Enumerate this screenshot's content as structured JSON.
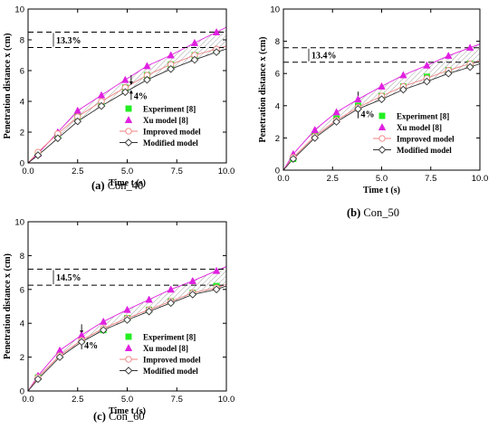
{
  "figure": {
    "captions": [
      {
        "tag": "(a)",
        "text": "Con_40"
      },
      {
        "tag": "(b)",
        "text": "Con_50"
      },
      {
        "tag": "(c)",
        "text": "Con_60"
      }
    ]
  },
  "chart_data": [
    {
      "type": "line",
      "caption": "(a) Con_40",
      "xlabel": "Time t (s)",
      "ylabel": "Penetration distance x (cm)",
      "xlim": [
        0,
        10
      ],
      "ylim": [
        0,
        10
      ],
      "xticks": [
        "0.0",
        "2.5",
        "5.0",
        "7.5",
        "10.0"
      ],
      "yticks": [
        "0",
        "2",
        "4",
        "6",
        "8",
        "10"
      ],
      "grid": false,
      "legend_position": "bottom-right",
      "annotations": [
        {
          "text": "13.3%",
          "type": "dashed-band",
          "y_low": 7.5,
          "y_high": 8.5
        },
        {
          "text": "4%",
          "type": "arrow",
          "x": 5.2,
          "y_low": 4.8,
          "y_high": 5.0
        }
      ],
      "series": [
        {
          "name": "Experiment [8]",
          "marker": "square",
          "color": "#22ee22",
          "x": [
            0.5,
            1.5,
            2.5,
            3.7,
            4.9,
            6.0,
            7.2,
            8.4,
            9.5
          ],
          "y": [
            0.6,
            1.8,
            3.0,
            3.9,
            4.9,
            5.7,
            6.4,
            7.0,
            7.3
          ]
        },
        {
          "name": "Xu model [8]",
          "marker": "triangle",
          "color": "#e020e0",
          "x": [
            0.5,
            1.5,
            2.5,
            3.7,
            4.9,
            6.0,
            7.2,
            8.4,
            9.5
          ],
          "y": [
            0.6,
            2.0,
            3.4,
            4.4,
            5.4,
            6.3,
            7.0,
            7.8,
            8.5
          ]
        },
        {
          "name": "Improved model",
          "marker": "circle-open",
          "color": "#f08080",
          "x": [
            0,
            0.5,
            1.5,
            2.5,
            3.7,
            4.9,
            6.0,
            7.2,
            8.4,
            9.5,
            10
          ],
          "y": [
            0,
            0.7,
            1.9,
            3.0,
            4.0,
            4.9,
            5.7,
            6.4,
            7.0,
            7.4,
            7.6
          ]
        },
        {
          "name": "Modified model",
          "marker": "diamond-open",
          "color": "#333333",
          "x": [
            0,
            0.5,
            1.5,
            2.5,
            3.7,
            4.9,
            6.0,
            7.2,
            8.4,
            9.5,
            10
          ],
          "y": [
            0,
            0.5,
            1.6,
            2.7,
            3.7,
            4.6,
            5.4,
            6.1,
            6.7,
            7.2,
            7.4
          ]
        }
      ]
    },
    {
      "type": "line",
      "caption": "(b) Con_50",
      "xlabel": "Time t (s)",
      "ylabel": "Penetration distance x (cm)",
      "xlim": [
        0,
        10
      ],
      "ylim": [
        0,
        10
      ],
      "xticks": [
        "0.0",
        "2.5",
        "5.0",
        "7.5",
        "10.0"
      ],
      "yticks": [
        "0",
        "2",
        "4",
        "6",
        "8",
        "10"
      ],
      "grid": false,
      "legend_position": "bottom-right",
      "annotations": [
        {
          "text": "13.4%",
          "type": "dashed-band",
          "y_low": 6.7,
          "y_high": 7.6
        },
        {
          "text": "4%",
          "type": "arrow",
          "x": 3.8,
          "y_low": 3.9,
          "y_high": 4.2
        }
      ],
      "series": [
        {
          "name": "Experiment [8]",
          "marker": "square",
          "color": "#22ee22",
          "x": [
            0.5,
            1.6,
            2.7,
            3.8,
            5.0,
            6.1,
            7.3,
            8.4,
            9.5
          ],
          "y": [
            0.7,
            2.2,
            3.2,
            4.0,
            4.6,
            5.2,
            5.8,
            6.2,
            6.6
          ]
        },
        {
          "name": "Xu model [8]",
          "marker": "triangle",
          "color": "#e020e0",
          "x": [
            0.5,
            1.6,
            2.7,
            3.8,
            5.0,
            6.1,
            7.3,
            8.4,
            9.5
          ],
          "y": [
            1.0,
            2.5,
            3.6,
            4.4,
            5.2,
            5.9,
            6.5,
            7.1,
            7.6
          ]
        },
        {
          "name": "Improved model",
          "marker": "circle-open",
          "color": "#f08080",
          "x": [
            0,
            0.5,
            1.6,
            2.7,
            3.8,
            5.0,
            6.1,
            7.3,
            8.4,
            9.5,
            10
          ],
          "y": [
            0,
            0.8,
            2.1,
            3.1,
            3.9,
            4.6,
            5.2,
            5.7,
            6.2,
            6.6,
            6.8
          ]
        },
        {
          "name": "Modified model",
          "marker": "diamond-open",
          "color": "#333333",
          "x": [
            0,
            0.5,
            1.6,
            2.7,
            3.8,
            5.0,
            6.1,
            7.3,
            8.4,
            9.5,
            10
          ],
          "y": [
            0,
            0.7,
            2.0,
            3.0,
            3.8,
            4.4,
            5.0,
            5.5,
            6.0,
            6.4,
            6.6
          ]
        }
      ]
    },
    {
      "type": "line",
      "caption": "(c) Con_60",
      "xlabel": "Time t (s)",
      "ylabel": "Penetration distance x (cm)",
      "xlim": [
        0,
        10
      ],
      "ylim": [
        0,
        10
      ],
      "xticks": [
        "0.0",
        "2.5",
        "5.0",
        "7.5",
        "10.0"
      ],
      "yticks": [
        "0",
        "2",
        "4",
        "6",
        "8",
        "10"
      ],
      "grid": false,
      "legend_position": "bottom-right",
      "annotations": [
        {
          "text": "14.5%",
          "type": "dashed-band",
          "y_low": 6.25,
          "y_high": 7.2
        },
        {
          "text": "4%",
          "type": "arrow",
          "x": 2.7,
          "y_low": 3.1,
          "y_high": 3.3
        }
      ],
      "series": [
        {
          "name": "Experiment [8]",
          "marker": "square",
          "color": "#22ee22",
          "x": [
            0.5,
            1.6,
            2.7,
            3.8,
            5.0,
            6.1,
            7.2,
            8.3,
            9.5
          ],
          "y": [
            0.8,
            2.1,
            3.0,
            3.6,
            4.3,
            4.8,
            5.3,
            5.8,
            6.2
          ]
        },
        {
          "name": "Xu model [8]",
          "marker": "triangle",
          "color": "#e020e0",
          "x": [
            0.5,
            1.6,
            2.7,
            3.8,
            5.0,
            6.1,
            7.2,
            8.3,
            9.5
          ],
          "y": [
            0.9,
            2.4,
            3.3,
            4.1,
            4.8,
            5.4,
            6.0,
            6.5,
            7.1
          ]
        },
        {
          "name": "Improved model",
          "marker": "circle-open",
          "color": "#f08080",
          "x": [
            0,
            0.5,
            1.6,
            2.7,
            3.8,
            5.0,
            6.1,
            7.2,
            8.3,
            9.5,
            10
          ],
          "y": [
            0,
            0.8,
            2.1,
            3.0,
            3.7,
            4.3,
            4.8,
            5.3,
            5.8,
            6.1,
            6.3
          ]
        },
        {
          "name": "Modified model",
          "marker": "diamond-open",
          "color": "#333333",
          "x": [
            0,
            0.5,
            1.6,
            2.7,
            3.8,
            5.0,
            6.1,
            7.2,
            8.3,
            9.5,
            10
          ],
          "y": [
            0,
            0.7,
            2.0,
            2.9,
            3.6,
            4.2,
            4.7,
            5.2,
            5.7,
            6.0,
            6.2
          ]
        }
      ]
    }
  ]
}
